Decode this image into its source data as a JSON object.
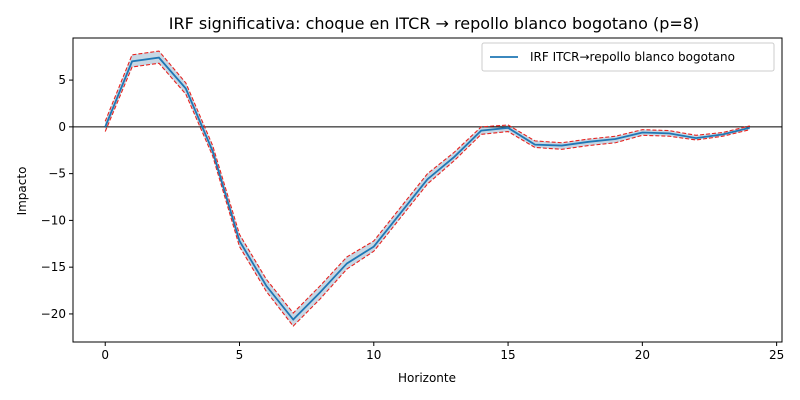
{
  "chart_data": {
    "type": "line",
    "title": "IRF significativa: choque en ITCR → repollo blanco bogotano (p=8)",
    "xlabel": "Horizonte",
    "ylabel": "Impacto",
    "xlim": [
      -1.2,
      25.2
    ],
    "ylim": [
      -23,
      9.5
    ],
    "xticks": [
      0,
      5,
      10,
      15,
      20,
      25
    ],
    "yticks": [
      -20,
      -15,
      -10,
      -5,
      0,
      5
    ],
    "x": [
      0,
      1,
      2,
      3,
      4,
      5,
      6,
      7,
      8,
      9,
      10,
      11,
      12,
      13,
      14,
      15,
      16,
      17,
      18,
      19,
      20,
      21,
      22,
      23,
      24
    ],
    "series": [
      {
        "name": "IRF ITCR→repollo blanco bogotano",
        "values": [
          0.0,
          7.0,
          7.4,
          4.1,
          -2.6,
          -12.2,
          -17.0,
          -20.6,
          -17.7,
          -14.6,
          -12.8,
          -9.2,
          -5.6,
          -3.2,
          -0.4,
          -0.1,
          -1.9,
          -2.0,
          -1.6,
          -1.3,
          -0.6,
          -0.7,
          -1.2,
          -0.8,
          -0.1
        ],
        "lower": [
          -0.5,
          6.4,
          6.8,
          3.5,
          -3.1,
          -12.8,
          -17.6,
          -21.3,
          -18.4,
          -15.2,
          -13.3,
          -9.7,
          -6.1,
          -3.6,
          -0.8,
          -0.5,
          -2.2,
          -2.4,
          -2.0,
          -1.7,
          -0.9,
          -1.0,
          -1.4,
          -1.0,
          -0.3
        ],
        "upper": [
          0.6,
          7.7,
          8.1,
          4.7,
          -2.0,
          -11.5,
          -16.3,
          -19.9,
          -17.0,
          -13.9,
          -12.2,
          -8.6,
          -5.0,
          -2.7,
          0.0,
          0.2,
          -1.5,
          -1.7,
          -1.3,
          -1.0,
          -0.3,
          -0.4,
          -0.9,
          -0.6,
          0.1
        ]
      }
    ],
    "hline": 0,
    "legend_position": "top-right",
    "grid": false,
    "colors": {
      "line": "#1f77b4",
      "band": "#a9c1d6",
      "bounds": "#e8231f",
      "zero": "#000000"
    }
  }
}
